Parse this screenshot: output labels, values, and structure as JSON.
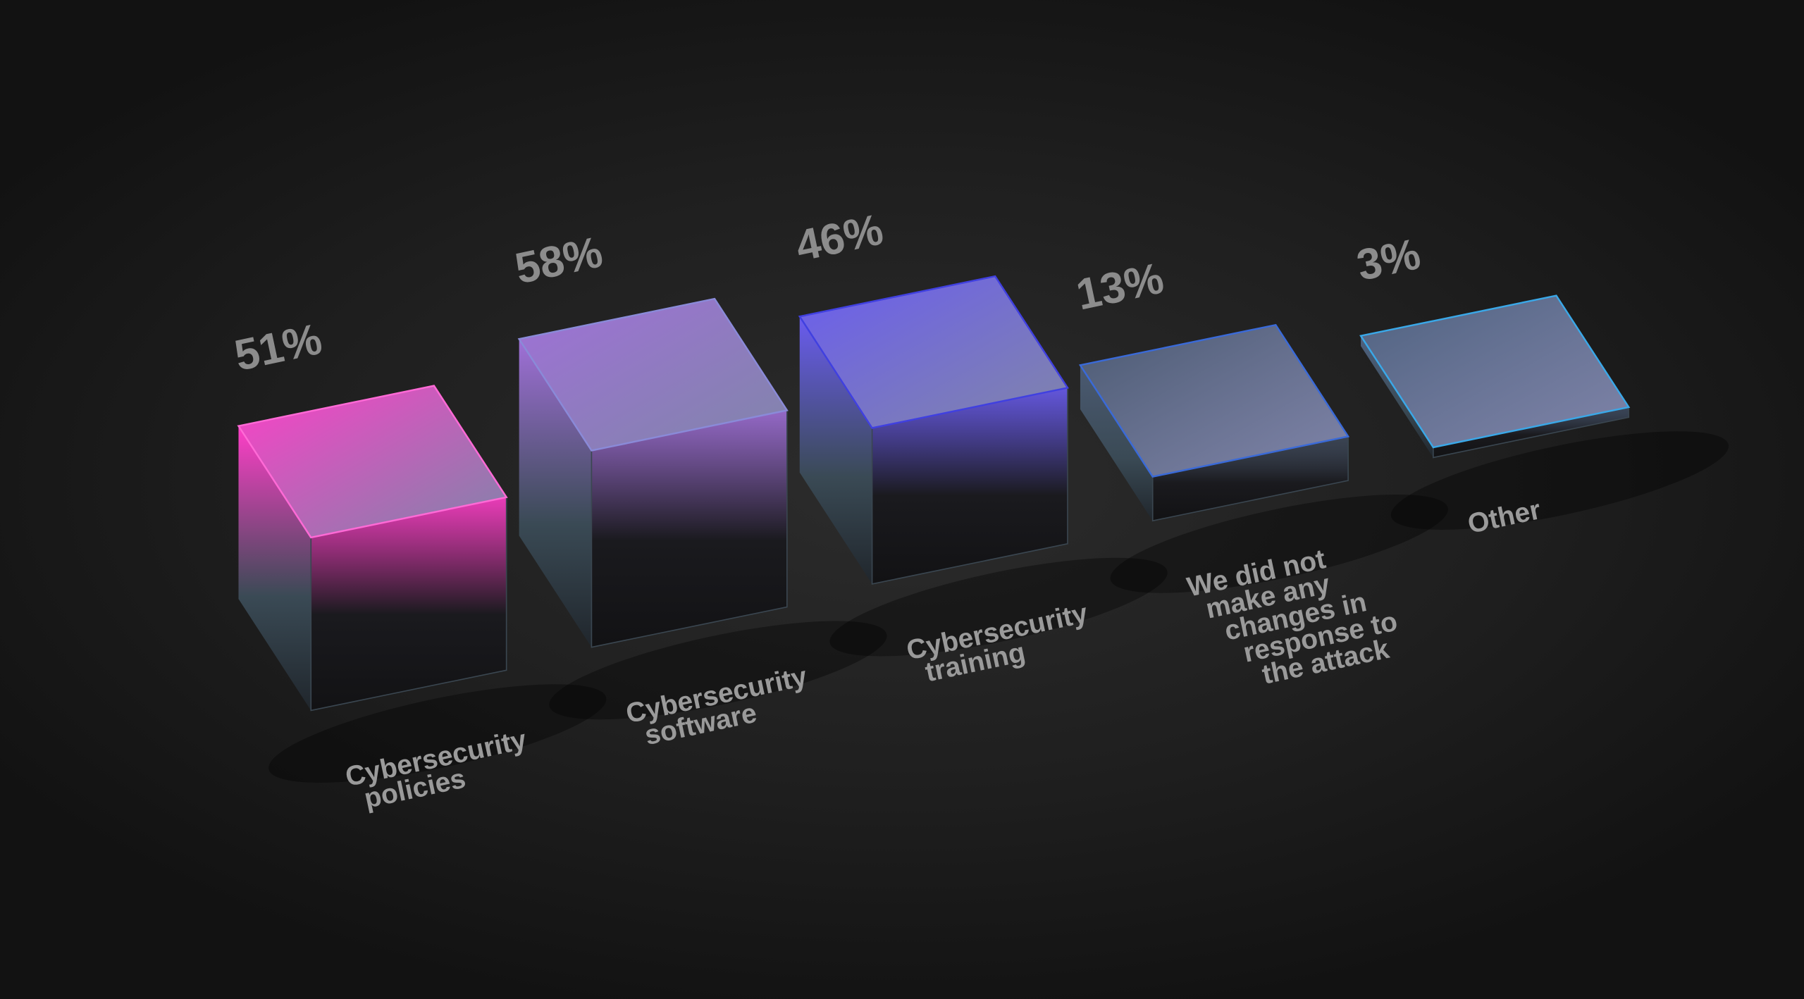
{
  "chart_data": {
    "type": "bar",
    "style": "3d-isometric-cubes",
    "categories": [
      [
        "Cybersecurity",
        "policies"
      ],
      [
        "Cybersecurity",
        "software"
      ],
      [
        "Cybersecurity",
        "training"
      ],
      [
        "We did not",
        "make any",
        "changes in",
        "response to",
        "the attack"
      ],
      [
        "Other"
      ]
    ],
    "values": [
      51,
      58,
      46,
      13,
      3
    ],
    "value_labels": [
      "51%",
      "58%",
      "46%",
      "13%",
      "3%"
    ],
    "unit": "%",
    "colors": [
      "#ff3fc8",
      "#a070d8",
      "#6a5cf0",
      "#4b5a72",
      "#4f6280"
    ],
    "edge_colors": [
      "#ff6ad6",
      "#8a8ad8",
      "#4040e0",
      "#3a6ad8",
      "#3aa8e8"
    ],
    "background": "#1e1e1e",
    "grid": false,
    "legend": "none"
  }
}
